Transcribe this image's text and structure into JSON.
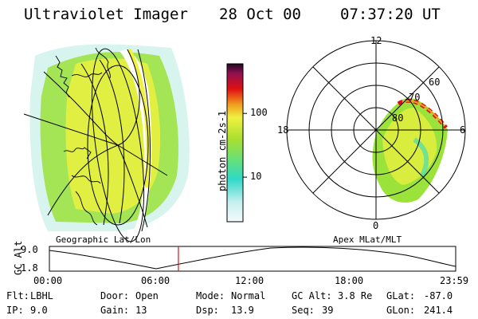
{
  "header": {
    "instrument": "Ultraviolet Imager",
    "date": "28 Oct 00",
    "time": "07:37:20 UT"
  },
  "colorbar": {
    "unit_label": "photon cm-2s-1",
    "ticks": [
      "100",
      "10"
    ],
    "scale": "log",
    "range": [
      2,
      600
    ],
    "tick_values": [
      100,
      10
    ]
  },
  "geo_panel": {
    "caption": "Geographic Lat/Lon"
  },
  "polar_panel": {
    "caption": "Apex MLat/MLT",
    "mlt_labels": [
      "12",
      "18",
      "6",
      "0"
    ],
    "lat_labels": [
      "60",
      "70",
      "80"
    ]
  },
  "altitude_plot": {
    "ylabel": "GC Alt",
    "yticks": [
      "9.0",
      "1.8"
    ],
    "xticks": [
      "00:00",
      "06:00",
      "12:00",
      "18:00",
      "23:59"
    ],
    "current_time_hours": 7.62
  },
  "status": {
    "flt": {
      "label": "Flt:",
      "value": "LBHL"
    },
    "ip": {
      "label": "IP:",
      "value": "9.0"
    },
    "door": {
      "label": "Door:",
      "value": "Open"
    },
    "gain": {
      "label": "Gain:",
      "value": "13"
    },
    "mode": {
      "label": "Mode:",
      "value": "Normal"
    },
    "dsp": {
      "label": "Dsp:",
      "value": "13.9"
    },
    "gcalt": {
      "label": "GC Alt:",
      "value": "3.8 Re"
    },
    "seq": {
      "label": "Seq:",
      "value": "39"
    },
    "glat": {
      "label": "GLat:",
      "value": "-87.0"
    },
    "glon": {
      "label": "GLon:",
      "value": "241.4"
    }
  },
  "colors": {
    "low": "#b8f0f0",
    "mid": "#2ee0c0",
    "green": "#9be23a",
    "yellow": "#e8f040",
    "orange": "#f0a020",
    "red": "#e01010",
    "dark": "#301030"
  }
}
